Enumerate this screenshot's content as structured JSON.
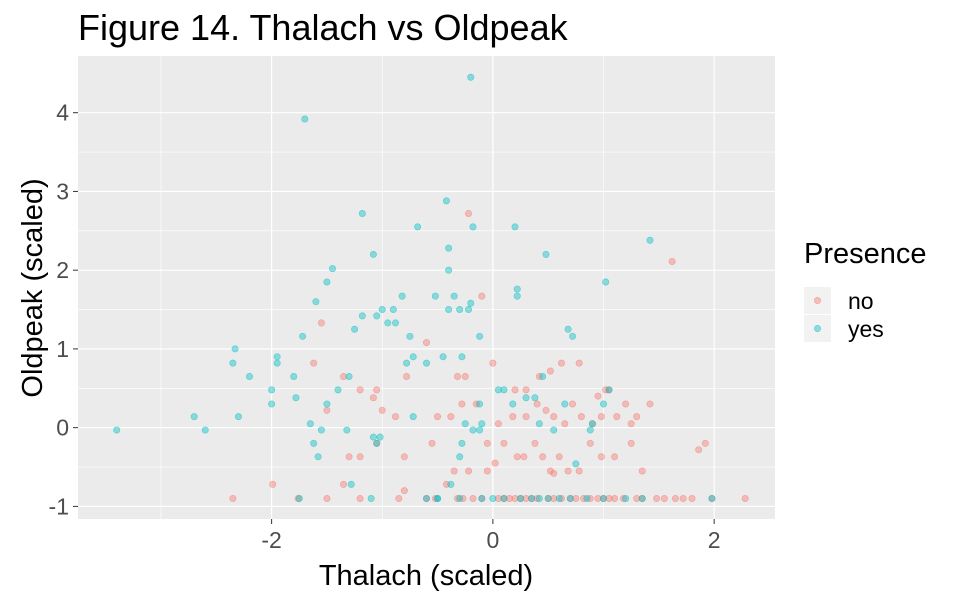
{
  "chart_data": {
    "type": "scatter",
    "title": "Figure 14. Thalach vs Oldpeak",
    "xlabel": "Thalach (scaled)",
    "ylabel": "Oldpeak (scaled)",
    "xlim": [
      -3.75,
      2.55
    ],
    "ylim": [
      -1.16,
      4.72
    ],
    "xticks": [
      -2,
      0,
      2
    ],
    "yticks": [
      -1,
      0,
      1,
      2,
      3,
      4
    ],
    "xtick_labels": [
      "-2",
      "0",
      "2"
    ],
    "ytick_labels": [
      "-1",
      "0",
      "1",
      "2",
      "3",
      "4"
    ],
    "grid": true,
    "legend": {
      "title": "Presence",
      "position": "right"
    },
    "series": [
      {
        "name": "no",
        "color": "#F8766D",
        "points": [
          [
            -2.35,
            -0.9
          ],
          [
            -1.99,
            -0.72
          ],
          [
            -1.76,
            -0.9
          ],
          [
            -1.5,
            -0.9
          ],
          [
            -1.35,
            -0.72
          ],
          [
            -1.2,
            -0.9
          ],
          [
            -0.85,
            -0.9
          ],
          [
            -0.8,
            -0.8
          ],
          [
            -0.6,
            -0.9
          ],
          [
            -0.52,
            -0.9
          ],
          [
            -0.32,
            -0.9
          ],
          [
            -0.27,
            -0.9
          ],
          [
            -0.18,
            -0.9
          ],
          [
            -0.1,
            -0.9
          ],
          [
            0.05,
            -0.9
          ],
          [
            0.1,
            -0.9
          ],
          [
            0.15,
            -0.9
          ],
          [
            0.2,
            -0.9
          ],
          [
            0.25,
            -0.9
          ],
          [
            0.3,
            -0.9
          ],
          [
            0.35,
            -0.9
          ],
          [
            0.4,
            -0.9
          ],
          [
            0.5,
            -0.9
          ],
          [
            0.55,
            -0.9
          ],
          [
            0.62,
            -0.9
          ],
          [
            0.7,
            -0.9
          ],
          [
            0.75,
            -0.9
          ],
          [
            0.82,
            -0.9
          ],
          [
            0.88,
            -0.9
          ],
          [
            0.95,
            -0.9
          ],
          [
            1.0,
            -0.9
          ],
          [
            1.05,
            -0.9
          ],
          [
            1.1,
            -0.9
          ],
          [
            1.18,
            -0.9
          ],
          [
            1.3,
            -0.9
          ],
          [
            1.35,
            -0.9
          ],
          [
            1.48,
            -0.9
          ],
          [
            1.55,
            -0.9
          ],
          [
            1.65,
            -0.9
          ],
          [
            1.72,
            -0.9
          ],
          [
            1.8,
            -0.9
          ],
          [
            1.98,
            -0.9
          ],
          [
            2.28,
            -0.9
          ],
          [
            -0.42,
            -0.72
          ],
          [
            -0.35,
            -0.55
          ],
          [
            -0.22,
            -0.55
          ],
          [
            -0.05,
            -0.55
          ],
          [
            0.02,
            -0.45
          ],
          [
            0.1,
            -0.2
          ],
          [
            0.22,
            -0.37
          ],
          [
            0.28,
            -0.37
          ],
          [
            0.38,
            -0.2
          ],
          [
            0.45,
            -0.37
          ],
          [
            0.52,
            -0.55
          ],
          [
            0.6,
            -0.37
          ],
          [
            0.68,
            -0.55
          ],
          [
            0.78,
            -0.55
          ],
          [
            0.88,
            -0.2
          ],
          [
            0.98,
            -0.37
          ],
          [
            1.1,
            -0.37
          ],
          [
            1.25,
            -0.2
          ],
          [
            1.35,
            -0.55
          ],
          [
            1.86,
            -0.28
          ],
          [
            1.92,
            -0.2
          ],
          [
            -1.3,
            -0.37
          ],
          [
            -1.2,
            -0.37
          ],
          [
            -1.05,
            -0.2
          ],
          [
            -0.8,
            -0.37
          ],
          [
            -0.55,
            -0.2
          ],
          [
            -0.5,
            0.14
          ],
          [
            -0.38,
            0.14
          ],
          [
            -0.28,
            0.3
          ],
          [
            -0.15,
            0.3
          ],
          [
            -0.05,
            -0.2
          ],
          [
            0.05,
            0.05
          ],
          [
            0.18,
            0.14
          ],
          [
            0.3,
            0.14
          ],
          [
            0.4,
            0.3
          ],
          [
            0.48,
            0.22
          ],
          [
            0.55,
            0.14
          ],
          [
            0.65,
            0.05
          ],
          [
            0.72,
            0.3
          ],
          [
            0.8,
            0.14
          ],
          [
            0.9,
            0.05
          ],
          [
            0.98,
            0.14
          ],
          [
            1.05,
            0.48
          ],
          [
            1.12,
            0.14
          ],
          [
            1.2,
            0.3
          ],
          [
            1.3,
            0.14
          ],
          [
            1.42,
            0.3
          ],
          [
            1.25,
            0.05
          ],
          [
            -0.6,
            1.08
          ],
          [
            -0.32,
            0.65
          ],
          [
            -0.25,
            0.65
          ],
          [
            -0.1,
            1.67
          ],
          [
            0.0,
            0.82
          ],
          [
            0.2,
            0.48
          ],
          [
            0.3,
            0.48
          ],
          [
            0.42,
            0.65
          ],
          [
            0.52,
            0.72
          ],
          [
            0.62,
            0.82
          ],
          [
            0.78,
            0.82
          ],
          [
            0.95,
            0.4
          ],
          [
            1.02,
            0.48
          ],
          [
            -1.5,
            0.22
          ],
          [
            -1.35,
            0.65
          ],
          [
            -1.2,
            0.48
          ],
          [
            -1.05,
            0.48
          ],
          [
            -1.0,
            0.22
          ],
          [
            -0.88,
            0.14
          ],
          [
            -0.78,
            0.65
          ],
          [
            -1.55,
            1.33
          ],
          [
            -1.62,
            0.82
          ],
          [
            -0.22,
            2.72
          ],
          [
            1.62,
            2.11
          ],
          [
            -1.08,
            0.38
          ],
          [
            0.55,
            -0.58
          ]
        ]
      },
      {
        "name": "yes",
        "color": "#00BFC4",
        "points": [
          [
            -3.4,
            -0.03
          ],
          [
            -2.7,
            0.14
          ],
          [
            -2.6,
            -0.03
          ],
          [
            -2.3,
            0.14
          ],
          [
            -2.35,
            0.82
          ],
          [
            -2.33,
            1.0
          ],
          [
            -2.2,
            0.65
          ],
          [
            -2.0,
            0.48
          ],
          [
            -2.0,
            0.3
          ],
          [
            -1.95,
            0.9
          ],
          [
            -1.95,
            0.82
          ],
          [
            -1.8,
            0.65
          ],
          [
            -1.78,
            0.38
          ],
          [
            -1.75,
            -0.9
          ],
          [
            -1.72,
            1.16
          ],
          [
            -1.65,
            0.05
          ],
          [
            -1.62,
            -0.2
          ],
          [
            -1.58,
            -0.37
          ],
          [
            -1.6,
            1.6
          ],
          [
            -1.55,
            -0.03
          ],
          [
            -1.5,
            0.3
          ],
          [
            -1.5,
            1.85
          ],
          [
            -1.45,
            2.02
          ],
          [
            -1.4,
            0.48
          ],
          [
            -1.32,
            -0.03
          ],
          [
            -1.3,
            0.65
          ],
          [
            -1.28,
            -0.72
          ],
          [
            -1.25,
            1.25
          ],
          [
            -1.18,
            1.42
          ],
          [
            -1.18,
            2.72
          ],
          [
            -1.08,
            -0.12
          ],
          [
            -1.05,
            -0.2
          ],
          [
            -1.02,
            -0.12
          ],
          [
            -1.05,
            1.42
          ],
          [
            -1.0,
            1.5
          ],
          [
            -0.95,
            1.33
          ],
          [
            -0.9,
            1.5
          ],
          [
            -0.88,
            1.33
          ],
          [
            -0.82,
            1.67
          ],
          [
            -0.78,
            0.82
          ],
          [
            -0.75,
            1.16
          ],
          [
            -0.72,
            0.9
          ],
          [
            -0.72,
            0.14
          ],
          [
            -0.68,
            2.55
          ],
          [
            -0.6,
            0.82
          ],
          [
            -0.52,
            1.67
          ],
          [
            -0.5,
            -0.9
          ],
          [
            -0.45,
            0.9
          ],
          [
            -0.42,
            2.88
          ],
          [
            -0.4,
            1.5
          ],
          [
            -0.35,
            1.67
          ],
          [
            -0.3,
            1.5
          ],
          [
            -0.28,
            0.9
          ],
          [
            -0.22,
            1.5
          ],
          [
            -0.2,
            1.58
          ],
          [
            -0.12,
            1.16
          ],
          [
            -0.18,
            2.55
          ],
          [
            -0.25,
            0.05
          ],
          [
            -0.18,
            -0.03
          ],
          [
            -0.28,
            -0.2
          ],
          [
            -0.1,
            0.05
          ],
          [
            -0.12,
            -0.03
          ],
          [
            0.05,
            0.48
          ],
          [
            0.1,
            0.48
          ],
          [
            0.18,
            0.3
          ],
          [
            0.22,
            1.76
          ],
          [
            0.22,
            1.67
          ],
          [
            0.2,
            2.55
          ],
          [
            0.3,
            0.38
          ],
          [
            0.38,
            0.38
          ],
          [
            0.42,
            0.05
          ],
          [
            0.45,
            0.65
          ],
          [
            0.55,
            -0.03
          ],
          [
            0.65,
            0.3
          ],
          [
            0.68,
            1.25
          ],
          [
            0.72,
            1.16
          ],
          [
            0.75,
            -0.46
          ],
          [
            0.88,
            -0.03
          ],
          [
            0.9,
            0.05
          ],
          [
            1.0,
            0.3
          ],
          [
            1.05,
            0.48
          ],
          [
            1.02,
            1.85
          ],
          [
            1.42,
            2.38
          ],
          [
            -0.6,
            -0.9
          ],
          [
            -0.5,
            -0.9
          ],
          [
            -0.3,
            -0.9
          ],
          [
            -0.1,
            -0.9
          ],
          [
            0.0,
            -0.9
          ],
          [
            0.1,
            -0.9
          ],
          [
            0.25,
            -0.9
          ],
          [
            0.35,
            -0.9
          ],
          [
            0.42,
            -0.9
          ],
          [
            0.5,
            -0.9
          ],
          [
            0.6,
            -0.9
          ],
          [
            0.7,
            -0.9
          ],
          [
            0.85,
            -0.9
          ],
          [
            1.0,
            -0.9
          ],
          [
            1.2,
            -0.9
          ],
          [
            1.35,
            -0.9
          ],
          [
            1.98,
            -0.9
          ],
          [
            -1.1,
            -0.9
          ],
          [
            -1.7,
            3.92
          ],
          [
            -0.2,
            4.45
          ],
          [
            -0.4,
            2.28
          ],
          [
            -0.4,
            2.0
          ],
          [
            -0.38,
            -0.72
          ],
          [
            0.48,
            2.2
          ],
          [
            -1.08,
            2.2
          ],
          [
            -0.3,
            -0.37
          ],
          [
            -0.12,
            0.3
          ]
        ]
      }
    ]
  }
}
